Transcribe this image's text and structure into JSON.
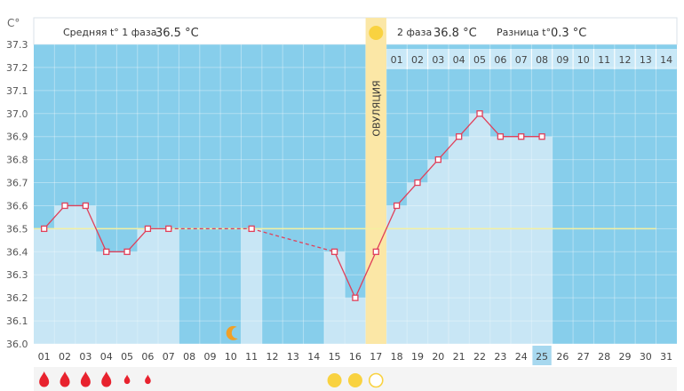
{
  "header": {
    "unit": "C°",
    "phase1_label": "Средняя t° 1 фаза",
    "phase1_value": "36.5 °C",
    "phase2_label": "2 фаза",
    "phase2_value": "36.8 °C",
    "diff_label": "Разница t°",
    "diff_value": "0.3 °C"
  },
  "ovulation_label": "ОВУЛЯЦИЯ",
  "chart_data": {
    "type": "line",
    "y_ticks": [
      "37.3",
      "37.2",
      "37.1",
      "37.0",
      "36.9",
      "36.8",
      "36.7",
      "36.6",
      "36.5",
      "36.4",
      "36.3",
      "36.2",
      "36.1",
      "36.0"
    ],
    "ylim": [
      36.0,
      37.3
    ],
    "days": [
      "01",
      "02",
      "03",
      "04",
      "05",
      "06",
      "07",
      "08",
      "09",
      "10",
      "11",
      "12",
      "13",
      "14",
      "15",
      "16",
      "17",
      "18",
      "19",
      "20",
      "21",
      "22",
      "23",
      "24",
      "25",
      "26",
      "27",
      "28",
      "29",
      "30",
      "31"
    ],
    "phase2_days": [
      "01",
      "02",
      "03",
      "04",
      "05",
      "06",
      "07",
      "08",
      "09",
      "10",
      "11",
      "12",
      "13",
      "14"
    ],
    "temperatures": [
      36.5,
      36.6,
      36.6,
      36.4,
      36.4,
      36.5,
      36.5,
      null,
      null,
      null,
      36.5,
      null,
      null,
      null,
      36.4,
      36.2,
      36.4,
      36.6,
      36.7,
      36.8,
      36.9,
      37.0,
      36.9,
      36.9,
      36.9,
      null,
      null,
      null,
      null,
      null,
      null
    ],
    "coverline": 36.5,
    "ovulation_day": "17",
    "current_day": "25",
    "moon_day": "10",
    "sun_day": "17",
    "bleeding": [
      {
        "day": "01",
        "size": "large"
      },
      {
        "day": "02",
        "size": "large"
      },
      {
        "day": "03",
        "size": "large"
      },
      {
        "day": "04",
        "size": "large"
      },
      {
        "day": "05",
        "size": "small"
      },
      {
        "day": "06",
        "size": "small"
      }
    ],
    "markers": [
      {
        "day": "15",
        "type": "filled"
      },
      {
        "day": "16",
        "type": "filled"
      },
      {
        "day": "17",
        "type": "outline"
      }
    ],
    "colors": {
      "background": "#87ceeb",
      "bar": "#c8e6f5",
      "line": "#e0405a",
      "coverline": "#f5f0a0",
      "ovulation": "#fbe7a6",
      "highlight_day": "#a7d8ef",
      "sun": "#f9d240",
      "blood": "#e8222e"
    }
  }
}
